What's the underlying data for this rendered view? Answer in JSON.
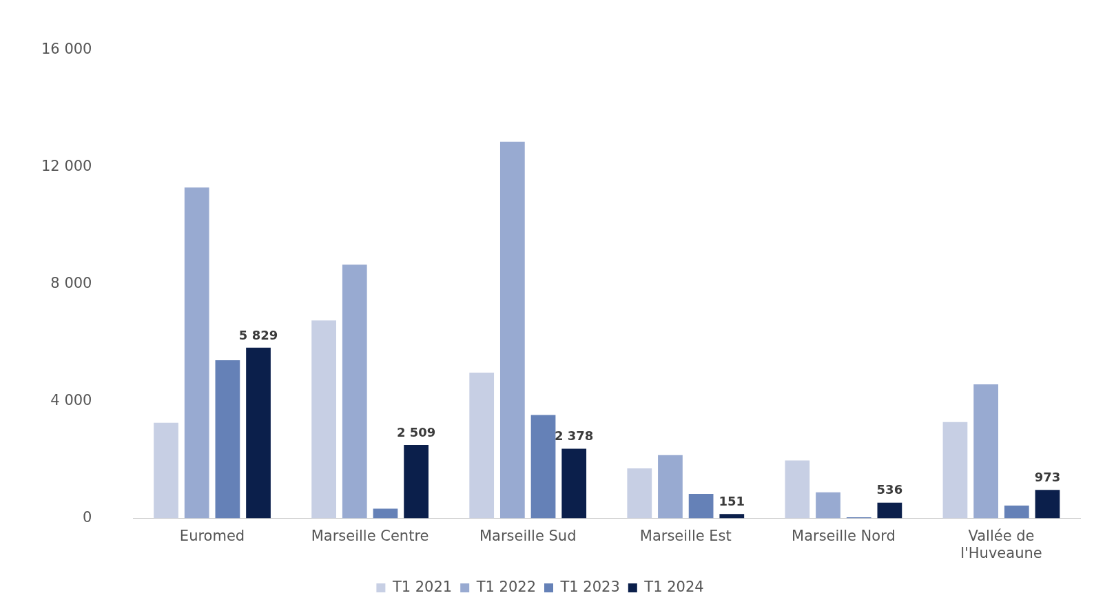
{
  "chart_data": {
    "type": "bar",
    "categories": [
      "Euromed",
      "Marseille Centre",
      "Marseille Sud",
      "Marseille Est",
      "Marseille Nord",
      "Vallée de l'Huveaune"
    ],
    "series": [
      {
        "name": "T1 2021",
        "color": "#c7cfe4",
        "values": [
          3270,
          6760,
          4980,
          1710,
          1980,
          3290
        ]
      },
      {
        "name": "T1 2022",
        "color": "#98aad1",
        "values": [
          11300,
          8670,
          12870,
          2160,
          890,
          4580
        ]
      },
      {
        "name": "T1 2023",
        "color": "#6581b7",
        "values": [
          5400,
          330,
          3530,
          840,
          40,
          440
        ]
      },
      {
        "name": "T1 2024",
        "color": "#0b1f4b",
        "values": [
          5829,
          2509,
          2378,
          151,
          536,
          973
        ],
        "value_labels": [
          "5 829",
          "2 509",
          "2 378",
          "151",
          "536",
          "973"
        ]
      }
    ],
    "ylim": [
      0,
      16000
    ],
    "yticks": [
      {
        "value": 0,
        "label": "0"
      },
      {
        "value": 4000,
        "label": "4 000"
      },
      {
        "value": 8000,
        "label": "8 000"
      },
      {
        "value": 12000,
        "label": "12 000"
      },
      {
        "value": 16000,
        "label": "16 000"
      }
    ],
    "grid": false,
    "legend": "bottom"
  }
}
